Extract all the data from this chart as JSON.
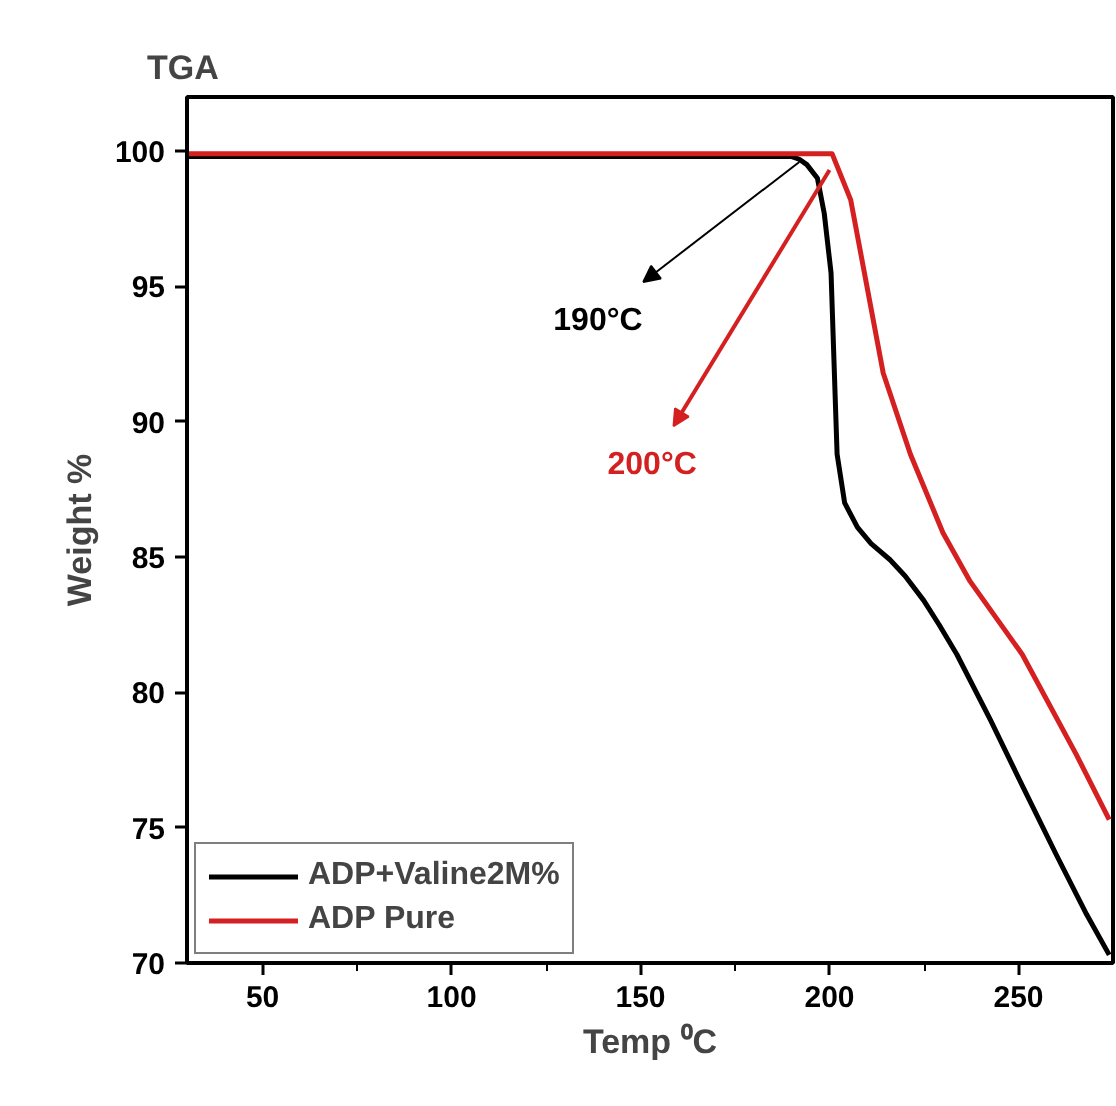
{
  "chart_data": {
    "type": "line",
    "title": "TGA",
    "xlabel": "Temp ⁰C",
    "ylabel": "Weight %",
    "xlim": [
      30,
      275
    ],
    "ylim": [
      70,
      102
    ],
    "xticks": [
      50,
      100,
      150,
      200,
      250
    ],
    "yticks": [
      70,
      75,
      80,
      85,
      90,
      95,
      100
    ],
    "grid": false,
    "legend": "bottom left",
    "line_style": "solid",
    "marker": "none",
    "series": [
      {
        "name": "ADP+Valine2M%",
        "color": "#000000",
        "x": [
          30,
          150,
          190,
          192,
          194,
          196.8,
          198.6,
          200.4,
          202,
          204,
          207.4,
          211,
          216,
          220,
          224.9,
          229,
          233.7,
          242.5,
          251.2,
          260,
          268,
          274
        ],
        "values": [
          99.8,
          99.8,
          99.8,
          99.7,
          99.5,
          99.0,
          97.7,
          95.5,
          88.8,
          87.0,
          86.1,
          85.5,
          84.9,
          84.3,
          83.4,
          82.5,
          81.4,
          79.0,
          76.5,
          74.0,
          71.8,
          70.3
        ]
      },
      {
        "name": "ADP Pure",
        "color": "#d42020",
        "x": [
          30,
          150,
          200.7,
          205.6,
          214.2,
          221.4,
          230,
          237.2,
          251,
          265.3,
          274
        ],
        "values": [
          99.9,
          99.9,
          99.9,
          98.2,
          91.8,
          88.8,
          85.9,
          84.1,
          81.4,
          77.7,
          75.3
        ]
      }
    ],
    "annotations": [
      {
        "text": "190°C",
        "x": 192,
        "y": 99.6
      },
      {
        "text": "200°C",
        "x": 200,
        "y": 99.3
      }
    ]
  }
}
